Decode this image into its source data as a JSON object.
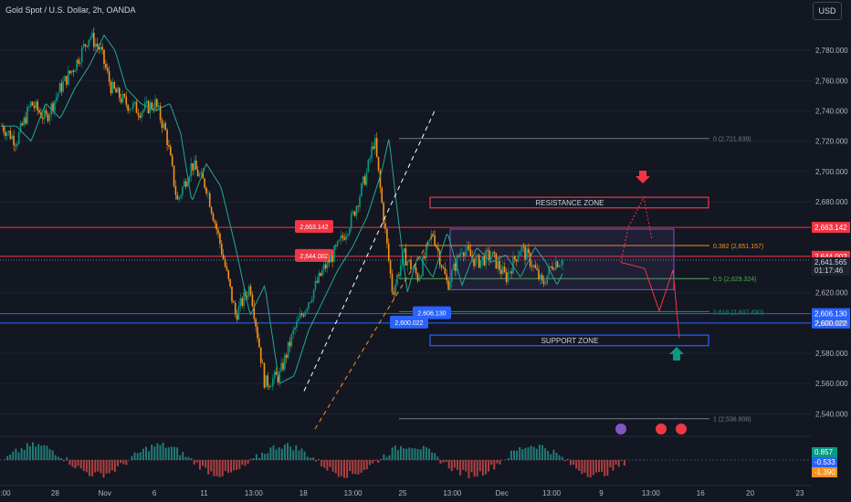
{
  "header": {
    "title": "Gold Spot / U.S. Dollar, 2h, OANDA",
    "currency_button": "USD"
  },
  "chart_data": {
    "type": "candlestick",
    "instrument": "Gold Spot / U.S. Dollar",
    "timeframe": "2h",
    "source": "OANDA",
    "ylim": [
      2530,
      2800
    ],
    "y_ticks": [
      "2,780.000",
      "2,760.000",
      "2,740.000",
      "2,720.000",
      "2,700.000",
      "2,680.000",
      "2,620.000",
      "2,600.000",
      "2,580.000",
      "2,560.000",
      "2,540.000"
    ],
    "y_tick_values": [
      2780,
      2760,
      2740,
      2720,
      2700,
      2680,
      2620,
      2600,
      2580,
      2560,
      2540
    ],
    "x_ticks": [
      ":00",
      "28",
      "Nov",
      "6",
      "11",
      "13:00",
      "18",
      "13:00",
      "25",
      "13:00",
      "Dec",
      "13:00",
      "9",
      "13:00",
      "16",
      "20",
      "23"
    ],
    "price_path": [
      [
        0,
        2730
      ],
      [
        0.02,
        2720
      ],
      [
        0.04,
        2745
      ],
      [
        0.06,
        2735
      ],
      [
        0.08,
        2755
      ],
      [
        0.1,
        2770
      ],
      [
        0.12,
        2790
      ],
      [
        0.135,
        2780
      ],
      [
        0.15,
        2755
      ],
      [
        0.17,
        2745
      ],
      [
        0.19,
        2740
      ],
      [
        0.21,
        2745
      ],
      [
        0.225,
        2725
      ],
      [
        0.24,
        2680
      ],
      [
        0.26,
        2705
      ],
      [
        0.28,
        2690
      ],
      [
        0.3,
        2650
      ],
      [
        0.32,
        2605
      ],
      [
        0.34,
        2625
      ],
      [
        0.36,
        2560
      ],
      [
        0.38,
        2565
      ],
      [
        0.4,
        2595
      ],
      [
        0.42,
        2615
      ],
      [
        0.44,
        2635
      ],
      [
        0.46,
        2650
      ],
      [
        0.48,
        2670
      ],
      [
        0.5,
        2700
      ],
      [
        0.51,
        2722
      ],
      [
        0.52,
        2680
      ],
      [
        0.535,
        2620
      ],
      [
        0.55,
        2645
      ],
      [
        0.57,
        2630
      ],
      [
        0.59,
        2660
      ],
      [
        0.61,
        2625
      ],
      [
        0.63,
        2650
      ],
      [
        0.65,
        2640
      ],
      [
        0.67,
        2645
      ],
      [
        0.69,
        2630
      ],
      [
        0.71,
        2650
      ],
      [
        0.725,
        2640
      ],
      [
        0.74,
        2625
      ],
      [
        0.755,
        2640
      ],
      [
        0.77,
        2642
      ]
    ],
    "horizontal_levels": [
      {
        "label": "2,663.142",
        "value": 2663.142,
        "color": "#f23645"
      },
      {
        "label": "2,644.002",
        "value": 2644.002,
        "color": "#f23645"
      },
      {
        "label": "2,606.130",
        "value": 2606.13,
        "color": "#2962ff"
      },
      {
        "label": "2,600.022",
        "value": 2600.022,
        "color": "#2962ff"
      }
    ],
    "last_price": {
      "value": "2,641.565",
      "countdown": "01:17:46"
    },
    "fibonacci": [
      {
        "label": "0 (2,721.839)",
        "value": 2721.839,
        "color": "#787b86"
      },
      {
        "label": "0.382 (2,651.157)",
        "value": 2651.157,
        "color": "#f7931a"
      },
      {
        "label": "0.5 (2,629.324)",
        "value": 2629.324,
        "color": "#4caf50"
      },
      {
        "label": "0.618 (2,607.490)",
        "value": 2607.49,
        "color": "#089981"
      },
      {
        "label": "1 (2,536.808)",
        "value": 2536.808,
        "color": "#787b86"
      }
    ],
    "zones": [
      {
        "label": "RESISTANCE ZONE",
        "top": 2683,
        "bottom": 2676,
        "color": "#f23645"
      },
      {
        "label": "SUPPORT ZONE",
        "top": 2592,
        "bottom": 2585,
        "color": "#2962ff"
      }
    ],
    "range_box": {
      "top": 2662,
      "bottom": 2622,
      "color": "#7e57c2"
    },
    "oscillator": {
      "values": [
        "0.857",
        "-0.533",
        "-1.390"
      ],
      "colors": [
        "#089981",
        "#2962ff",
        "#f7931a"
      ]
    },
    "colors": {
      "up": "#089981",
      "down": "#f7931a",
      "ma": "#26a69a",
      "red": "#f23645",
      "blue": "#2962ff",
      "bg": "#131722"
    }
  }
}
